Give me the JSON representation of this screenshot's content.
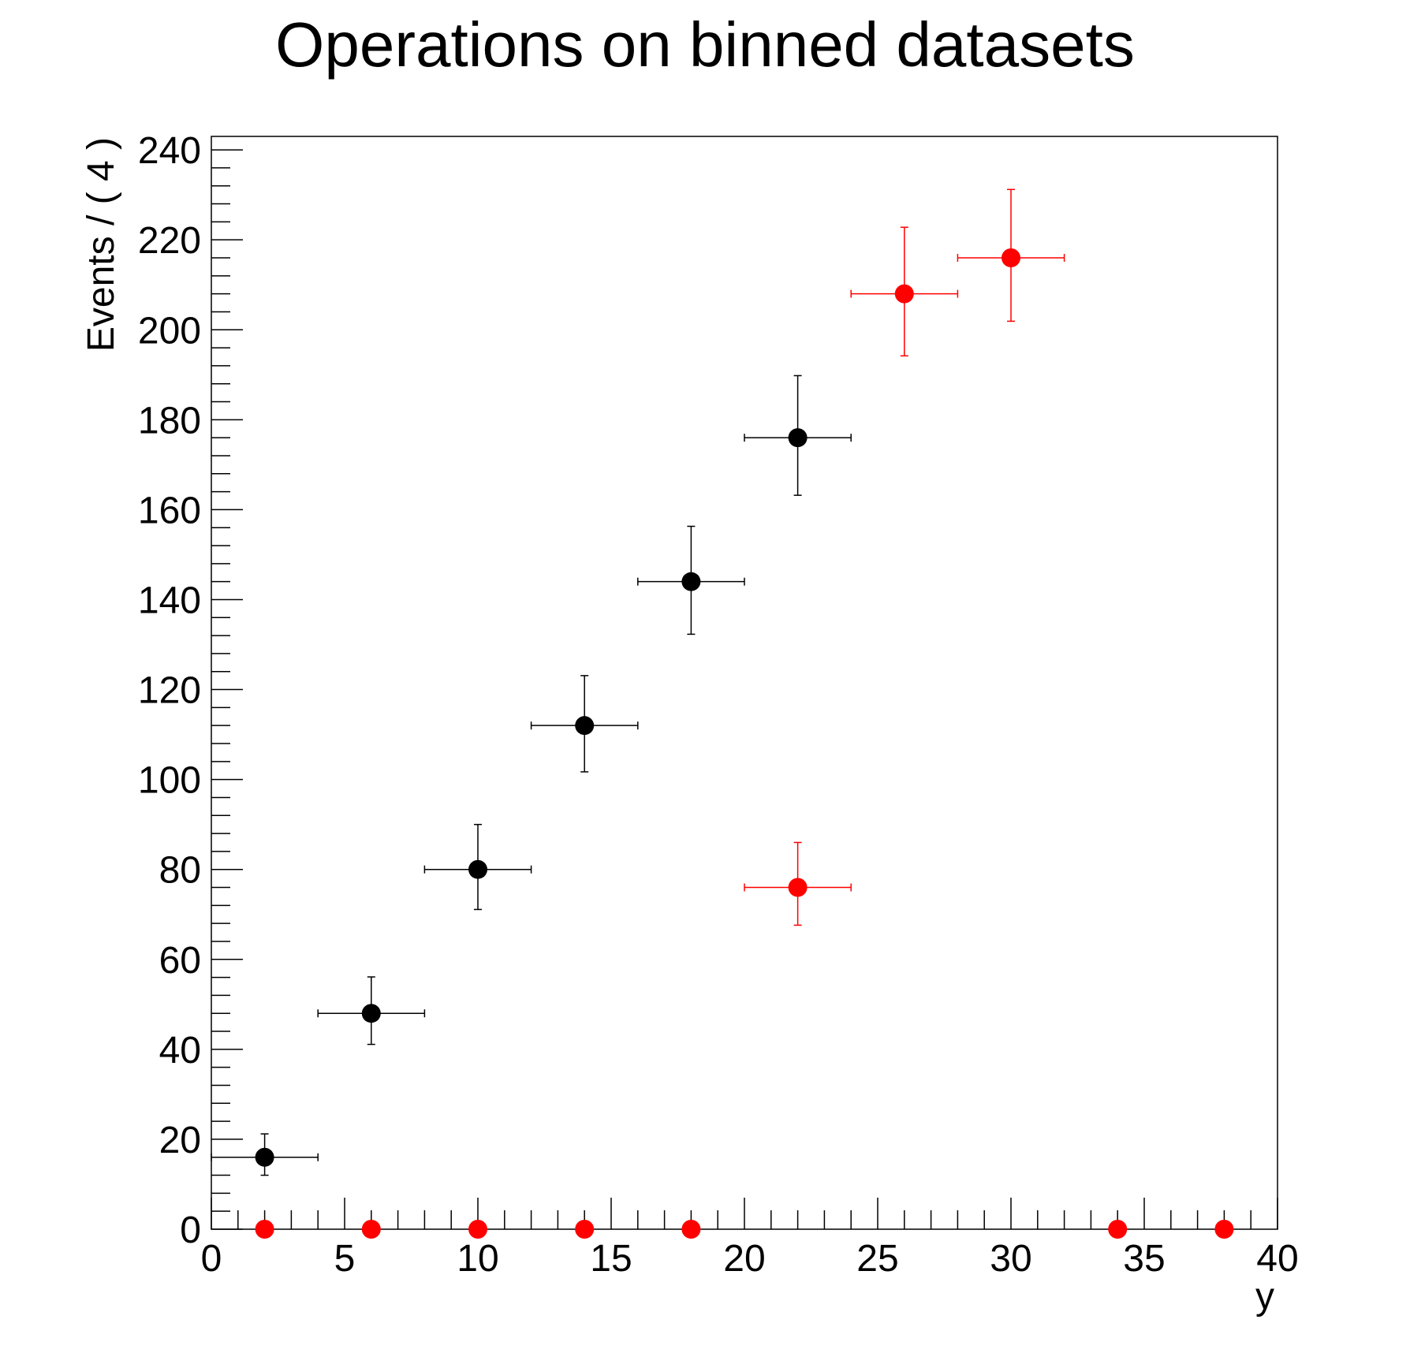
{
  "chart_data": {
    "type": "scatter",
    "title": "Operations on binned datasets",
    "xlabel": "y",
    "ylabel": "Events / ( 4 )",
    "xlim": [
      0,
      40
    ],
    "ylim": [
      0,
      243
    ],
    "grid": false,
    "legend": "none",
    "x_ticks": [
      "0",
      "5",
      "10",
      "15",
      "20",
      "25",
      "30",
      "35",
      "40"
    ],
    "y_ticks": [
      "0",
      "20",
      "40",
      "60",
      "80",
      "100",
      "120",
      "140",
      "160",
      "180",
      "200",
      "220",
      "240"
    ],
    "series": [
      {
        "color": "#000000",
        "points": [
          {
            "x": 2,
            "y": 16,
            "xerr": 2,
            "yerr_low": 4,
            "yerr_high": 5.2
          },
          {
            "x": 6,
            "y": 48,
            "xerr": 2,
            "yerr_low": 6.9,
            "yerr_high": 8.1
          },
          {
            "x": 10,
            "y": 80,
            "xerr": 2,
            "yerr_low": 8.9,
            "yerr_high": 10.0
          },
          {
            "x": 14,
            "y": 112,
            "xerr": 2,
            "yerr_low": 10.3,
            "yerr_high": 11.1
          },
          {
            "x": 18,
            "y": 144,
            "xerr": 2,
            "yerr_low": 11.7,
            "yerr_high": 12.3
          },
          {
            "x": 22,
            "y": 176,
            "xerr": 2,
            "yerr_low": 12.8,
            "yerr_high": 13.8
          }
        ]
      },
      {
        "color": "#ff0000",
        "points": [
          {
            "x": 2,
            "y": 0
          },
          {
            "x": 6,
            "y": 0
          },
          {
            "x": 10,
            "y": 0
          },
          {
            "x": 14,
            "y": 0
          },
          {
            "x": 18,
            "y": 0
          },
          {
            "x": 22,
            "y": 76,
            "xerr": 2,
            "yerr_low": 8.4,
            "yerr_high": 10.0
          },
          {
            "x": 26,
            "y": 208,
            "xerr": 2,
            "yerr_low": 13.8,
            "yerr_high": 14.8
          },
          {
            "x": 30,
            "y": 216,
            "xerr": 2,
            "yerr_low": 14.1,
            "yerr_high": 15.2
          },
          {
            "x": 34,
            "y": 0
          },
          {
            "x": 38,
            "y": 0
          }
        ]
      }
    ]
  }
}
